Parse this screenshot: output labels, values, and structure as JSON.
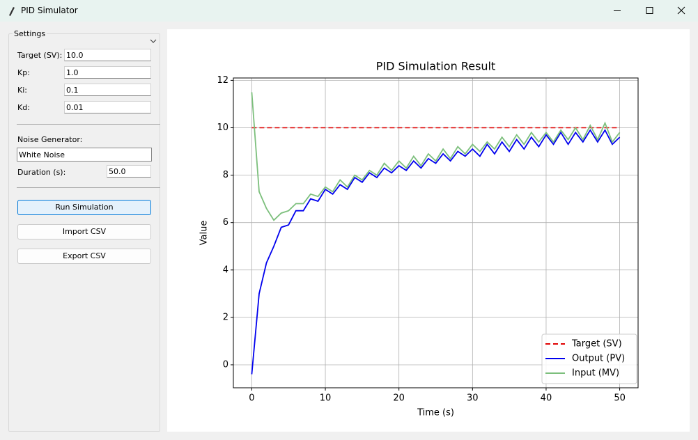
{
  "window": {
    "title": "PID Simulator"
  },
  "settings": {
    "legend": "Settings",
    "fields": [
      {
        "label": "Target (SV):",
        "value": "10.0"
      },
      {
        "label": "Kp:",
        "value": "1.0"
      },
      {
        "label": "Ki:",
        "value": "0.1"
      },
      {
        "label": "Kd:",
        "value": "0.01"
      }
    ],
    "noise_label": "Noise Generator:",
    "noise_value": "White Noise",
    "duration_label": "Duration (s):",
    "duration_value": "50.0",
    "buttons": [
      "Run Simulation",
      "Import CSV",
      "Export CSV"
    ]
  },
  "chart_data": {
    "type": "line",
    "title": "PID Simulation Result",
    "x_label": "Time (s)",
    "y_label": "Value",
    "x": [
      0,
      1,
      2,
      3,
      4,
      5,
      6,
      7,
      8,
      9,
      10,
      11,
      12,
      13,
      14,
      15,
      16,
      17,
      18,
      19,
      20,
      21,
      22,
      23,
      24,
      25,
      26,
      27,
      28,
      29,
      30,
      31,
      32,
      33,
      34,
      35,
      36,
      37,
      38,
      39,
      40,
      41,
      42,
      43,
      44,
      45,
      46,
      47,
      48,
      49,
      50
    ],
    "series": [
      {
        "name": "Target (SV)",
        "color": "#e00000",
        "style": "dashed",
        "values": [
          10,
          10,
          10,
          10,
          10,
          10,
          10,
          10,
          10,
          10,
          10,
          10,
          10,
          10,
          10,
          10,
          10,
          10,
          10,
          10,
          10,
          10,
          10,
          10,
          10,
          10,
          10,
          10,
          10,
          10,
          10,
          10,
          10,
          10,
          10,
          10,
          10,
          10,
          10,
          10,
          10,
          10,
          10,
          10,
          10,
          10,
          10,
          10,
          10,
          10,
          10
        ]
      },
      {
        "name": "Output (PV)",
        "color": "#0000ee",
        "style": "solid",
        "values": [
          -0.4,
          3.0,
          4.3,
          5.0,
          5.8,
          5.9,
          6.5,
          6.5,
          7.0,
          6.9,
          7.4,
          7.2,
          7.6,
          7.4,
          7.9,
          7.7,
          8.1,
          7.9,
          8.3,
          8.1,
          8.4,
          8.2,
          8.6,
          8.3,
          8.7,
          8.5,
          8.9,
          8.6,
          9.0,
          8.8,
          9.1,
          8.8,
          9.3,
          8.9,
          9.4,
          9.0,
          9.5,
          9.1,
          9.6,
          9.2,
          9.7,
          9.3,
          9.8,
          9.3,
          9.8,
          9.4,
          9.9,
          9.4,
          9.9,
          9.3,
          9.6
        ]
      },
      {
        "name": "Input (MV)",
        "color": "#7cbf7c",
        "style": "solid",
        "values": [
          11.5,
          7.3,
          6.6,
          6.1,
          6.4,
          6.5,
          6.8,
          6.8,
          7.2,
          7.1,
          7.5,
          7.3,
          7.8,
          7.5,
          8.0,
          7.8,
          8.2,
          8.0,
          8.5,
          8.2,
          8.6,
          8.3,
          8.8,
          8.4,
          8.9,
          8.6,
          9.1,
          8.7,
          9.2,
          8.9,
          9.3,
          9.0,
          9.4,
          9.1,
          9.6,
          9.2,
          9.7,
          9.3,
          9.8,
          9.4,
          9.8,
          9.4,
          9.9,
          9.5,
          10.0,
          9.5,
          10.1,
          9.5,
          10.2,
          9.4,
          9.8
        ]
      }
    ],
    "xlim": [
      -2.5,
      52.5
    ],
    "ylim": [
      -0.97,
      12.1
    ],
    "xticks": [
      0,
      10,
      20,
      30,
      40,
      50
    ],
    "yticks": [
      0,
      2,
      4,
      6,
      8,
      10,
      12
    ],
    "grid": true,
    "legend": "lower right"
  }
}
